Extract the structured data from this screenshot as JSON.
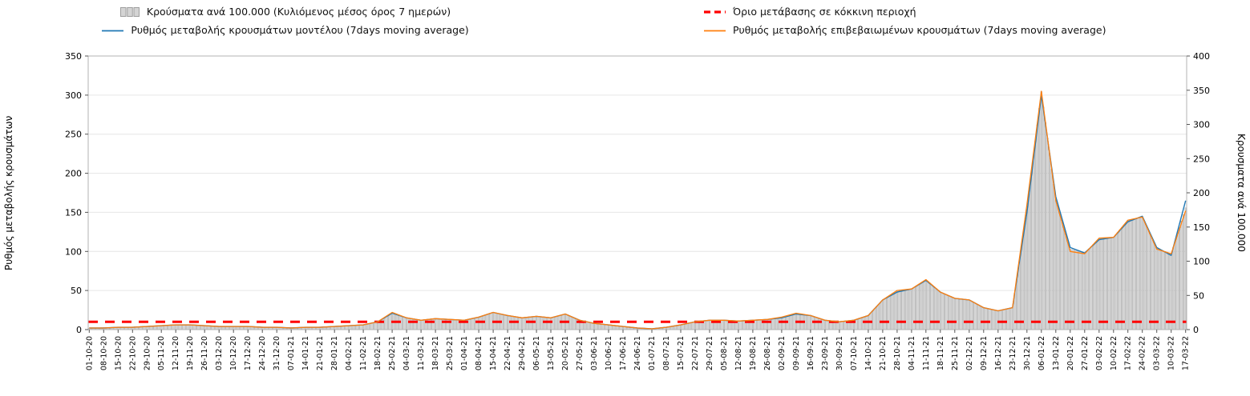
{
  "legend": {
    "items": [
      {
        "label": "Κρούσματα ανά 100.000 (Κυλιόμενος μέσος όρος 7 ημερών)",
        "swatch": "gray-bars"
      },
      {
        "label": "Όριο μετάβασης σε κόκκινη περιοχή",
        "swatch": "red-dashed-line"
      },
      {
        "label": "Ρυθμός μεταβολής κρουσμάτων μοντέλου (7days moving average)",
        "swatch": "blue-line"
      },
      {
        "label": "Ρυθμός μεταβολής επιβεβαιωμένων κρουσμάτων (7days moving average)",
        "swatch": "orange-line"
      }
    ]
  },
  "chart_data": {
    "type": "combo",
    "title": "",
    "grid": "horizontal",
    "legend_position": "top",
    "left_axis": {
      "label": "Ρυθμός μεταβολής κρουσμάτων",
      "min": 0,
      "max": 350,
      "step": 50
    },
    "right_axis": {
      "label": "Κρουσματα ανά 100.000",
      "min": 0,
      "max": 400,
      "step": 50
    },
    "threshold": {
      "name": "Όριο μετάβασης σε κόκκινη περιοχή",
      "axis": "left",
      "value": 10,
      "color": "#ff0000",
      "style": "dashed"
    },
    "x_labels": [
      "01-10-20",
      "08-10-20",
      "15-10-20",
      "22-10-20",
      "29-10-20",
      "05-11-20",
      "12-11-20",
      "19-11-20",
      "26-11-20",
      "03-12-20",
      "10-12-20",
      "17-12-20",
      "24-12-20",
      "31-12-20",
      "07-01-21",
      "14-01-21",
      "21-01-21",
      "28-01-21",
      "04-02-21",
      "11-02-21",
      "18-02-21",
      "25-02-21",
      "04-03-21",
      "11-03-21",
      "18-03-21",
      "25-03-21",
      "01-04-21",
      "08-04-21",
      "15-04-21",
      "22-04-21",
      "29-04-21",
      "06-05-21",
      "13-05-21",
      "20-05-21",
      "27-05-21",
      "03-06-21",
      "10-06-21",
      "17-06-21",
      "24-06-21",
      "01-07-21",
      "08-07-21",
      "15-07-21",
      "22-07-21",
      "29-07-21",
      "05-08-21",
      "12-08-21",
      "19-08-21",
      "26-08-21",
      "02-09-21",
      "09-09-21",
      "16-09-21",
      "23-09-21",
      "30-09-21",
      "07-10-21",
      "14-10-21",
      "21-10-21",
      "28-10-21",
      "04-11-21",
      "11-11-21",
      "18-11-21",
      "25-11-21",
      "02-12-21",
      "09-12-21",
      "16-12-21",
      "23-12-21",
      "30-12-21",
      "06-01-22",
      "13-01-22",
      "20-01-22",
      "27-01-22",
      "03-02-22",
      "10-02-22",
      "17-02-22",
      "24-02-22",
      "03-03-22",
      "10-03-22",
      "17-03-22"
    ],
    "series": [
      {
        "name": "Κρούσματα ανά 100.000 (Κυλιόμενος μέσος όρος 7 ημερών)",
        "type": "bar",
        "axis": "right",
        "fill": "#d4d4d4",
        "stroke": "#9e9e9e",
        "values": [
          2,
          3,
          3,
          4,
          5,
          6,
          7,
          7,
          6,
          5,
          5,
          5,
          4,
          3,
          3,
          3,
          4,
          5,
          6,
          7,
          11,
          25,
          17,
          14,
          16,
          15,
          14,
          18,
          25,
          21,
          17,
          19,
          17,
          23,
          14,
          9,
          7,
          5,
          2,
          1,
          3,
          7,
          11,
          14,
          14,
          13,
          14,
          15,
          18,
          24,
          21,
          14,
          11,
          14,
          21,
          43,
          56,
          59,
          73,
          55,
          46,
          43,
          32,
          27,
          32,
          178,
          348,
          190,
          118,
          112,
          133,
          135,
          160,
          165,
          119,
          111,
          178
        ]
      },
      {
        "name": "Ρυθμός μεταβολής κρουσμάτων μοντέλου (7days moving average)",
        "type": "line",
        "axis": "left",
        "color": "#1f77b4",
        "values": [
          2,
          2,
          3,
          3,
          4,
          5,
          6,
          6,
          5,
          4,
          4,
          4,
          3,
          3,
          2,
          3,
          3,
          4,
          5,
          6,
          10,
          21,
          15,
          12,
          14,
          13,
          12,
          16,
          22,
          18,
          15,
          17,
          15,
          20,
          12,
          8,
          6,
          4,
          2,
          1,
          3,
          6,
          10,
          12,
          12,
          11,
          12,
          13,
          15,
          20,
          18,
          12,
          10,
          12,
          18,
          38,
          48,
          52,
          63,
          48,
          40,
          38,
          28,
          24,
          28,
          150,
          300,
          170,
          105,
          98,
          115,
          118,
          138,
          145,
          105,
          95,
          165
        ]
      },
      {
        "name": "Ρυθμός μεταβολής επιβεβαιωμένων κρουσμάτων (7days moving average)",
        "type": "line",
        "axis": "left",
        "color": "#ff7f0e",
        "values": [
          2,
          2,
          3,
          3,
          4,
          5,
          6,
          6,
          5,
          4,
          4,
          4,
          3,
          3,
          2,
          3,
          3,
          4,
          5,
          6,
          10,
          22,
          15,
          12,
          14,
          13,
          12,
          16,
          22,
          18,
          15,
          17,
          15,
          20,
          12,
          8,
          6,
          4,
          2,
          1,
          3,
          6,
          10,
          12,
          12,
          11,
          12,
          13,
          16,
          21,
          18,
          12,
          10,
          12,
          18,
          38,
          50,
          52,
          64,
          48,
          40,
          38,
          28,
          24,
          28,
          160,
          305,
          165,
          100,
          97,
          117,
          118,
          140,
          144,
          103,
          97,
          152
        ]
      }
    ]
  }
}
